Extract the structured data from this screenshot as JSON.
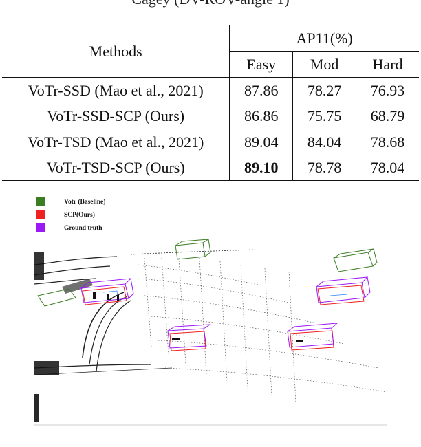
{
  "caption_fragment": "Cagey (DV-ROV-angle 1)",
  "table": {
    "header": {
      "methods": "Methods",
      "metric": "AP11(%)",
      "easy": "Easy",
      "mod": "Mod",
      "hard": "Hard"
    },
    "rows": [
      {
        "method": "VoTr-SSD (Mao et al., 2021)",
        "easy": "87.86",
        "mod": "78.27",
        "hard": "76.93"
      },
      {
        "method": "VoTr-SSD-SCP (Ours)",
        "easy": "86.86",
        "mod": "75.75",
        "hard": "68.79"
      },
      {
        "method": "VoTr-TSD (Mao et al., 2021)",
        "easy": "89.04",
        "mod": "84.04",
        "hard": "78.68"
      },
      {
        "method": "VoTr-TSD-SCP (Ours)",
        "easy": "89.10",
        "mod": "78.78",
        "hard": "78.04"
      }
    ]
  },
  "legend": [
    {
      "label": "Votr (Baseline)",
      "color": "#3a7d22"
    },
    {
      "label": "SCP(Ours)",
      "color": "#ef2020"
    },
    {
      "label": "Ground truth",
      "color": "#9b19f5"
    }
  ]
}
